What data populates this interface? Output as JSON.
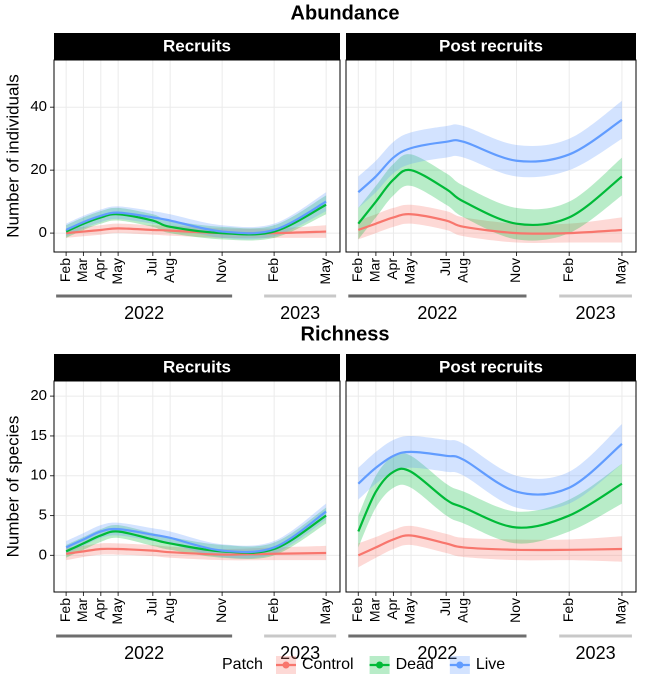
{
  "chart_data": [
    {
      "type": "line",
      "title": "Abundance",
      "strip": "Recruits",
      "y_label": "Number of individuals",
      "x": [
        0,
        1,
        2,
        3,
        5,
        6,
        9,
        12,
        15
      ],
      "xlim": [
        -0.7,
        15.8
      ],
      "xticks": [
        {
          "value": 0,
          "label": "Feb"
        },
        {
          "value": 1,
          "label": "Mar"
        },
        {
          "value": 2,
          "label": "Apr"
        },
        {
          "value": 3,
          "label": "May"
        },
        {
          "value": 5,
          "label": "Jul"
        },
        {
          "value": 6,
          "label": "Aug"
        },
        {
          "value": 9,
          "label": "Nov"
        },
        {
          "value": 12,
          "label": "Feb"
        },
        {
          "value": 15,
          "label": "May"
        }
      ],
      "years": [
        {
          "label": "2022",
          "from": 0,
          "to": 9
        },
        {
          "label": "2023",
          "from": 12,
          "to": 15
        }
      ],
      "ylim": [
        -6,
        55
      ],
      "yticks": [
        0,
        20,
        40
      ],
      "grid": true,
      "series": [
        {
          "name": "Control",
          "color": "#f8766d",
          "values": [
            0,
            0.5,
            1,
            1.5,
            1,
            0.8,
            0,
            0,
            0.5
          ],
          "lower": [
            -1.5,
            -1,
            -0.5,
            0,
            -0.5,
            -0.8,
            -1.5,
            -1.5,
            -1.5
          ],
          "upper": [
            1.5,
            2,
            2.5,
            3,
            2.5,
            2.4,
            1.5,
            1.5,
            2.5
          ]
        },
        {
          "name": "Dead",
          "color": "#00ba38",
          "values": [
            0.5,
            3,
            5,
            6,
            4,
            2,
            0,
            0.5,
            9
          ],
          "lower": [
            -1.5,
            1,
            3,
            4,
            2,
            0,
            -2,
            -1.5,
            6
          ],
          "upper": [
            2.5,
            5,
            7,
            8,
            6,
            4,
            2,
            2.5,
            12
          ]
        },
        {
          "name": "Live",
          "color": "#619cff",
          "values": [
            1,
            3.5,
            5.5,
            6.5,
            5,
            4,
            0.5,
            1,
            10
          ],
          "lower": [
            -1,
            1.5,
            3.5,
            4.5,
            3,
            2,
            -1.5,
            -1,
            7
          ],
          "upper": [
            3,
            5.5,
            7.5,
            8.5,
            7,
            6,
            2.5,
            3,
            13
          ]
        }
      ]
    },
    {
      "type": "line",
      "strip": "Post recruits",
      "x": [
        0,
        1,
        2,
        3,
        5,
        6,
        9,
        12,
        15
      ],
      "xlim": [
        -0.7,
        15.8
      ],
      "xticks": [
        {
          "value": 0,
          "label": "Feb"
        },
        {
          "value": 1,
          "label": "Mar"
        },
        {
          "value": 2,
          "label": "Apr"
        },
        {
          "value": 3,
          "label": "May"
        },
        {
          "value": 5,
          "label": "Jul"
        },
        {
          "value": 6,
          "label": "Aug"
        },
        {
          "value": 9,
          "label": "Nov"
        },
        {
          "value": 12,
          "label": "Feb"
        },
        {
          "value": 15,
          "label": "May"
        }
      ],
      "years": [
        {
          "label": "2022",
          "from": 0,
          "to": 9
        },
        {
          "label": "2023",
          "from": 12,
          "to": 15
        }
      ],
      "ylim": [
        -6,
        55
      ],
      "yticks": [
        0,
        20,
        40
      ],
      "grid": true,
      "series": [
        {
          "name": "Control",
          "color": "#f8766d",
          "values": [
            1,
            3,
            5,
            6,
            4,
            2,
            0,
            0,
            1
          ],
          "lower": [
            -2,
            0,
            2,
            3,
            1,
            -1,
            -3,
            -3,
            -3
          ],
          "upper": [
            4,
            6,
            8,
            9,
            7,
            5,
            3,
            3,
            5
          ]
        },
        {
          "name": "Dead",
          "color": "#00ba38",
          "values": [
            3,
            10,
            17,
            20,
            14,
            10,
            3,
            5,
            18
          ],
          "lower": [
            -2,
            5,
            12,
            15,
            9,
            5,
            -2,
            0,
            12
          ],
          "upper": [
            8,
            15,
            22,
            25,
            19,
            15,
            8,
            10,
            24
          ]
        },
        {
          "name": "Live",
          "color": "#619cff",
          "values": [
            13,
            18,
            24,
            27,
            29,
            29,
            23,
            25,
            36
          ],
          "lower": [
            8,
            13,
            19,
            22,
            24,
            24,
            18,
            20,
            30
          ],
          "upper": [
            18,
            23,
            29,
            32,
            34,
            34,
            28,
            30,
            42
          ]
        }
      ]
    },
    {
      "type": "line",
      "title": "Richness",
      "strip": "Recruits",
      "y_label": "Number of species",
      "x": [
        0,
        1,
        2,
        3,
        5,
        6,
        9,
        12,
        15
      ],
      "xlim": [
        -0.7,
        15.8
      ],
      "xticks": [
        {
          "value": 0,
          "label": "Feb"
        },
        {
          "value": 1,
          "label": "Mar"
        },
        {
          "value": 2,
          "label": "Apr"
        },
        {
          "value": 3,
          "label": "May"
        },
        {
          "value": 5,
          "label": "Jul"
        },
        {
          "value": 6,
          "label": "Aug"
        },
        {
          "value": 9,
          "label": "Nov"
        },
        {
          "value": 12,
          "label": "Feb"
        },
        {
          "value": 15,
          "label": "May"
        }
      ],
      "years": [
        {
          "label": "2022",
          "from": 0,
          "to": 9
        },
        {
          "label": "2023",
          "from": 12,
          "to": 15
        }
      ],
      "ylim": [
        -4.6,
        21.9
      ],
      "yticks": [
        0,
        5,
        10,
        15,
        20
      ],
      "grid": true,
      "series": [
        {
          "name": "Control",
          "color": "#f8766d",
          "values": [
            0.2,
            0.5,
            0.8,
            0.8,
            0.6,
            0.4,
            0.1,
            0.2,
            0.3
          ],
          "lower": [
            -0.6,
            -0.2,
            0.1,
            0.1,
            -0.1,
            -0.3,
            -0.6,
            -0.6,
            -0.6
          ],
          "upper": [
            1,
            1.2,
            1.5,
            1.5,
            1.3,
            1.1,
            0.8,
            1,
            1.2
          ]
        },
        {
          "name": "Dead",
          "color": "#00ba38",
          "values": [
            0.5,
            1.5,
            2.5,
            3,
            2,
            1.5,
            0.5,
            0.8,
            5
          ],
          "lower": [
            -0.3,
            0.7,
            1.7,
            2.2,
            1.2,
            0.7,
            -0.3,
            0,
            4
          ],
          "upper": [
            1.3,
            2.3,
            3.3,
            3.8,
            2.8,
            2.3,
            1.3,
            1.6,
            6
          ]
        },
        {
          "name": "Live",
          "color": "#619cff",
          "values": [
            1,
            2,
            3,
            3.3,
            2.6,
            2.2,
            0.6,
            1,
            5.5
          ],
          "lower": [
            0.2,
            1.2,
            2.2,
            2.5,
            1.8,
            1.4,
            -0.2,
            0.2,
            4.5
          ],
          "upper": [
            1.8,
            2.8,
            3.8,
            4.1,
            3.4,
            3,
            1.4,
            1.8,
            6.5
          ]
        }
      ]
    },
    {
      "type": "line",
      "strip": "Post recruits",
      "legend_title": "Patch",
      "x": [
        0,
        1,
        2,
        3,
        5,
        6,
        9,
        12,
        15
      ],
      "xlim": [
        -0.7,
        15.8
      ],
      "xticks": [
        {
          "value": 0,
          "label": "Feb"
        },
        {
          "value": 1,
          "label": "Mar"
        },
        {
          "value": 2,
          "label": "Apr"
        },
        {
          "value": 3,
          "label": "May"
        },
        {
          "value": 5,
          "label": "Jul"
        },
        {
          "value": 6,
          "label": "Aug"
        },
        {
          "value": 9,
          "label": "Nov"
        },
        {
          "value": 12,
          "label": "Feb"
        },
        {
          "value": 15,
          "label": "May"
        }
      ],
      "years": [
        {
          "label": "2022",
          "from": 0,
          "to": 9
        },
        {
          "label": "2023",
          "from": 12,
          "to": 15
        }
      ],
      "ylim": [
        -4.6,
        21.9
      ],
      "yticks": [
        0,
        5,
        10,
        15,
        20
      ],
      "grid": true,
      "series": [
        {
          "name": "Control",
          "color": "#f8766d",
          "values": [
            0,
            1,
            2,
            2.5,
            1.5,
            1,
            0.7,
            0.7,
            0.8
          ],
          "lower": [
            -1.5,
            -0.3,
            0.8,
            1.3,
            0.3,
            -0.2,
            -0.6,
            -0.6,
            -0.8
          ],
          "upper": [
            1.5,
            2.3,
            3.2,
            3.7,
            2.7,
            2.2,
            2,
            2,
            2.4
          ]
        },
        {
          "name": "Dead",
          "color": "#00ba38",
          "values": [
            3,
            8,
            10.5,
            10.5,
            7,
            6,
            3.5,
            5,
            9
          ],
          "lower": [
            1,
            6,
            8.5,
            8.5,
            5,
            4,
            1.5,
            3,
            6.5
          ],
          "upper": [
            5,
            10,
            12.5,
            12.5,
            9,
            8,
            5.5,
            7,
            11.5
          ]
        },
        {
          "name": "Live",
          "color": "#619cff",
          "values": [
            9,
            11,
            12.5,
            13,
            12.5,
            12,
            8,
            8.5,
            14
          ],
          "lower": [
            7,
            9,
            10.5,
            11,
            10.5,
            10,
            6,
            6.5,
            11.5
          ],
          "upper": [
            11,
            13,
            14.5,
            15,
            14.5,
            14,
            10,
            10.5,
            16.5
          ]
        }
      ]
    }
  ]
}
